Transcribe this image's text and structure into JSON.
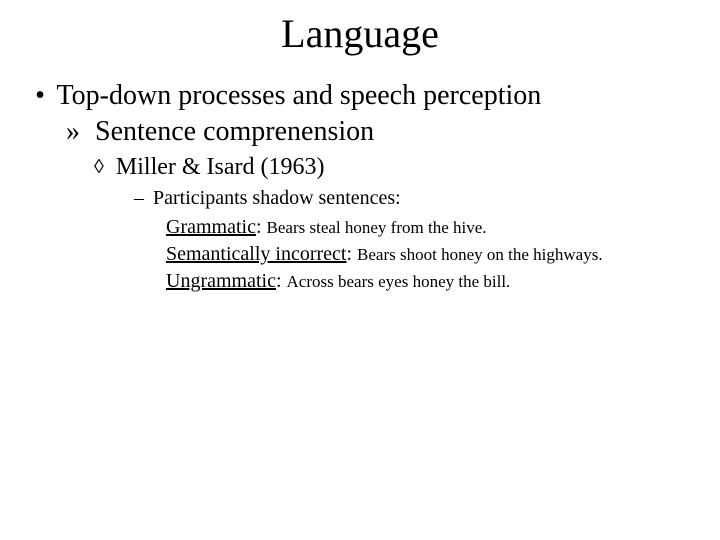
{
  "title": "Language",
  "l1_bullet": "•",
  "l1_text": "Top-down processes and speech perception",
  "l2_bullet": "»",
  "l2_text": "Sentence comprenension",
  "l3_bullet": "◊",
  "l3_text": "Miller & Isard (1963)",
  "l4_bullet": "–",
  "l4_text": "Participants shadow sentences:",
  "examples": [
    {
      "label": "Grammatic",
      "text": "Bears steal honey from the hive."
    },
    {
      "label": "Semantically incorrect",
      "text": "Bears shoot honey on the highways."
    },
    {
      "label": "Ungrammatic",
      "text": "Across bears eyes honey the bill."
    }
  ],
  "colors": {
    "background": "#ffffff",
    "text": "#000000"
  },
  "fonts": {
    "family": "Times New Roman",
    "title_size_pt": 40,
    "level1_size_pt": 28,
    "level2_size_pt": 28,
    "level3_size_pt": 24,
    "level4_size_pt": 20,
    "label_size_pt": 20,
    "example_size_pt": 17
  }
}
